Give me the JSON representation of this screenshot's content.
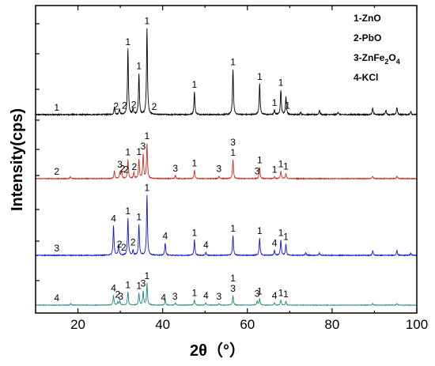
{
  "chart_data": {
    "type": "line",
    "xlabel": "2θ（°）",
    "ylabel": "Intensity(cps)",
    "xlim": [
      10,
      100
    ],
    "xticks": [
      "20",
      "40",
      "60",
      "80",
      "100"
    ],
    "legend_position": "top-right",
    "legend": [
      {
        "label": "1-ZnO"
      },
      {
        "label": "2-PbO"
      },
      {
        "label": "3-ZnFe2O4",
        "main": "3-ZnFe",
        "sub1": "2",
        "mid": "O",
        "sub2": "4"
      },
      {
        "label": "4-KCl"
      }
    ],
    "series": [
      {
        "color": "#000000",
        "peaks": [
          [
            28.6,
            0.08
          ],
          [
            29.8,
            0.06
          ],
          [
            31.8,
            0.72
          ],
          [
            33.0,
            0.06
          ],
          [
            34.4,
            0.45
          ],
          [
            36.3,
            0.95
          ],
          [
            47.5,
            0.25
          ],
          [
            56.6,
            0.5
          ],
          [
            62.9,
            0.34
          ],
          [
            66.4,
            0.05
          ],
          [
            67.9,
            0.27
          ],
          [
            69.1,
            0.2
          ],
          [
            72.6,
            0.03
          ],
          [
            77.0,
            0.05
          ],
          [
            81.4,
            0.03
          ],
          [
            89.6,
            0.07
          ],
          [
            92.7,
            0.05
          ],
          [
            95.3,
            0.08
          ],
          [
            98.6,
            0.04
          ]
        ],
        "peak_labels": [
          [
            "1",
            15.0
          ],
          [
            "2",
            29.0
          ],
          [
            "2",
            31.0
          ],
          [
            "1",
            31.8
          ],
          [
            "2",
            33.2
          ],
          [
            "1",
            34.4
          ],
          [
            "1",
            36.3
          ],
          [
            "2",
            38.0
          ],
          [
            "1",
            47.5
          ],
          [
            "1",
            56.6
          ],
          [
            "1",
            62.9
          ],
          [
            "1",
            66.4
          ],
          [
            "1",
            67.9
          ],
          [
            "1",
            69.5
          ]
        ]
      },
      {
        "color": "#d02a1e",
        "peaks": [
          [
            18.2,
            0.03
          ],
          [
            28.6,
            0.12
          ],
          [
            29.9,
            0.1
          ],
          [
            30.3,
            0.12
          ],
          [
            31.8,
            0.3
          ],
          [
            33.2,
            0.1
          ],
          [
            34.4,
            0.3
          ],
          [
            35.4,
            0.38
          ],
          [
            36.3,
            0.55
          ],
          [
            43.0,
            0.05
          ],
          [
            47.5,
            0.13
          ],
          [
            53.3,
            0.04
          ],
          [
            56.6,
            0.3
          ],
          [
            62.9,
            0.18
          ],
          [
            66.4,
            0.03
          ],
          [
            67.9,
            0.12
          ],
          [
            69.1,
            0.08
          ],
          [
            89.6,
            0.04
          ],
          [
            95.3,
            0.04
          ]
        ],
        "peak_labels": [
          [
            "2",
            15.0
          ],
          [
            "3",
            29.9
          ],
          [
            "2",
            30.5
          ],
          [
            "2",
            31.4
          ],
          [
            "1",
            31.8
          ],
          [
            "2",
            33.3
          ],
          [
            "1",
            34.4
          ],
          [
            "3",
            35.4
          ],
          [
            "1",
            36.3
          ],
          [
            "3",
            43.0
          ],
          [
            "1",
            47.5
          ],
          [
            "3",
            53.3
          ],
          [
            "1",
            56.6
          ],
          [
            "3",
            56.6
          ],
          [
            "3",
            62.3
          ],
          [
            "1",
            62.9
          ],
          [
            "1",
            66.4
          ],
          [
            "1",
            67.9
          ],
          [
            "1",
            69.1
          ]
        ]
      },
      {
        "color": "#1414d4",
        "peaks": [
          [
            28.4,
            0.48
          ],
          [
            29.6,
            0.18
          ],
          [
            31.8,
            0.6
          ],
          [
            33.0,
            0.08
          ],
          [
            34.4,
            0.5
          ],
          [
            36.3,
            0.98
          ],
          [
            40.6,
            0.2
          ],
          [
            47.5,
            0.25
          ],
          [
            50.2,
            0.05
          ],
          [
            56.6,
            0.32
          ],
          [
            62.9,
            0.28
          ],
          [
            66.4,
            0.08
          ],
          [
            67.9,
            0.25
          ],
          [
            69.1,
            0.18
          ],
          [
            73.8,
            0.04
          ],
          [
            77.0,
            0.04
          ],
          [
            89.6,
            0.07
          ],
          [
            95.3,
            0.08
          ],
          [
            98.6,
            0.03
          ]
        ],
        "peak_labels": [
          [
            "3",
            15.0
          ],
          [
            "4",
            28.4
          ],
          [
            "2",
            29.8
          ],
          [
            "2",
            30.8
          ],
          [
            "1",
            31.8
          ],
          [
            "2",
            33.0
          ],
          [
            "1",
            34.4
          ],
          [
            "1",
            36.3
          ],
          [
            "4",
            40.6
          ],
          [
            "1",
            47.5
          ],
          [
            "4",
            50.2
          ],
          [
            "1",
            56.6
          ],
          [
            "1",
            62.9
          ],
          [
            "4",
            66.4
          ],
          [
            "1",
            67.9
          ],
          [
            "1",
            69.1
          ]
        ]
      },
      {
        "color": "#1d8a86",
        "peaks": [
          [
            18.3,
            0.04
          ],
          [
            28.4,
            0.25
          ],
          [
            29.4,
            0.08
          ],
          [
            29.9,
            0.1
          ],
          [
            31.8,
            0.33
          ],
          [
            34.4,
            0.3
          ],
          [
            35.4,
            0.35
          ],
          [
            36.3,
            0.55
          ],
          [
            40.6,
            0.13
          ],
          [
            43.0,
            0.06
          ],
          [
            47.5,
            0.13
          ],
          [
            50.2,
            0.06
          ],
          [
            53.3,
            0.04
          ],
          [
            56.6,
            0.24
          ],
          [
            62.3,
            0.1
          ],
          [
            62.9,
            0.17
          ],
          [
            66.4,
            0.06
          ],
          [
            67.9,
            0.13
          ],
          [
            69.1,
            0.1
          ],
          [
            89.6,
            0.04
          ],
          [
            95.3,
            0.04
          ]
        ],
        "peak_labels": [
          [
            "4",
            15.0
          ],
          [
            "4",
            28.4
          ],
          [
            "2",
            29.4
          ],
          [
            "3",
            30.1
          ],
          [
            "1",
            31.8
          ],
          [
            "1",
            34.4
          ],
          [
            "3",
            35.4
          ],
          [
            "1",
            36.3
          ],
          [
            "4",
            40.2
          ],
          [
            "3",
            42.9
          ],
          [
            "1",
            47.5
          ],
          [
            "4",
            50.2
          ],
          [
            "3",
            53.3
          ],
          [
            "3",
            56.6
          ],
          [
            "1",
            56.6
          ],
          [
            "3",
            62.3
          ],
          [
            "1",
            62.9
          ],
          [
            "4",
            66.4
          ],
          [
            "1",
            67.9
          ],
          [
            "1",
            69.1
          ]
        ]
      }
    ]
  }
}
